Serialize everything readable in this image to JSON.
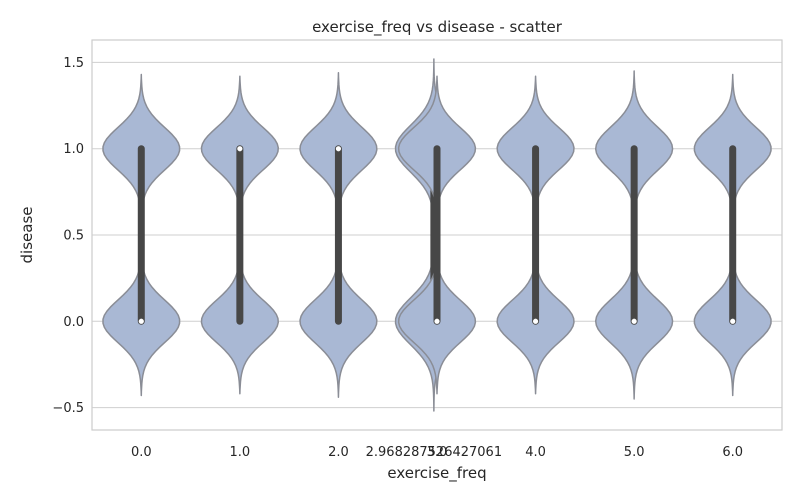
{
  "chart_data": {
    "type": "violin",
    "title": "exercise_freq vs disease - scatter",
    "xlabel": "exercise_freq",
    "ylabel": "disease",
    "ylim": [
      -0.63,
      1.63
    ],
    "yticks": [
      -0.5,
      0.0,
      0.5,
      1.0,
      1.5
    ],
    "ytick_labels": [
      "−0.5",
      "0.0",
      "0.5",
      "1.0",
      "1.5"
    ],
    "categories": [
      "0.0",
      "1.0",
      "2.0",
      "2.968287526427061",
      "3.0",
      "4.0",
      "5.0",
      "6.0"
    ],
    "violins": [
      {
        "x": 0.0,
        "q1": 0.0,
        "median": 0.0,
        "q3": 1.0,
        "min": -0.43,
        "max": 1.43,
        "half_width": 0.39
      },
      {
        "x": 1.0,
        "q1": 0.0,
        "median": 1.0,
        "q3": 1.0,
        "min": -0.42,
        "max": 1.42,
        "half_width": 0.39
      },
      {
        "x": 2.0,
        "q1": 0.0,
        "median": 1.0,
        "q3": 1.0,
        "min": -0.44,
        "max": 1.44,
        "half_width": 0.39
      },
      {
        "x": 2.968287526427061,
        "q1": 0.0,
        "median": 1.0,
        "q3": 1.0,
        "min": -0.52,
        "max": 1.52,
        "half_width": 0.39
      },
      {
        "x": 3.0,
        "q1": 0.0,
        "median": 0.0,
        "q3": 1.0,
        "min": -0.42,
        "max": 1.42,
        "half_width": 0.39
      },
      {
        "x": 4.0,
        "q1": 0.0,
        "median": 0.0,
        "q3": 1.0,
        "min": -0.42,
        "max": 1.42,
        "half_width": 0.39
      },
      {
        "x": 5.0,
        "q1": 0.0,
        "median": 0.0,
        "q3": 1.0,
        "min": -0.45,
        "max": 1.45,
        "half_width": 0.39
      },
      {
        "x": 6.0,
        "q1": 0.0,
        "median": 0.0,
        "q3": 1.0,
        "min": -0.43,
        "max": 1.43,
        "half_width": 0.39
      }
    ],
    "grid": true,
    "colors": {
      "violin_fill": "#a9b8d4",
      "violin_edge": "#8a8d96",
      "box": "#474747",
      "median": "#ffffff",
      "grid": "#cfcfcf",
      "spine": "#cccccc"
    }
  }
}
